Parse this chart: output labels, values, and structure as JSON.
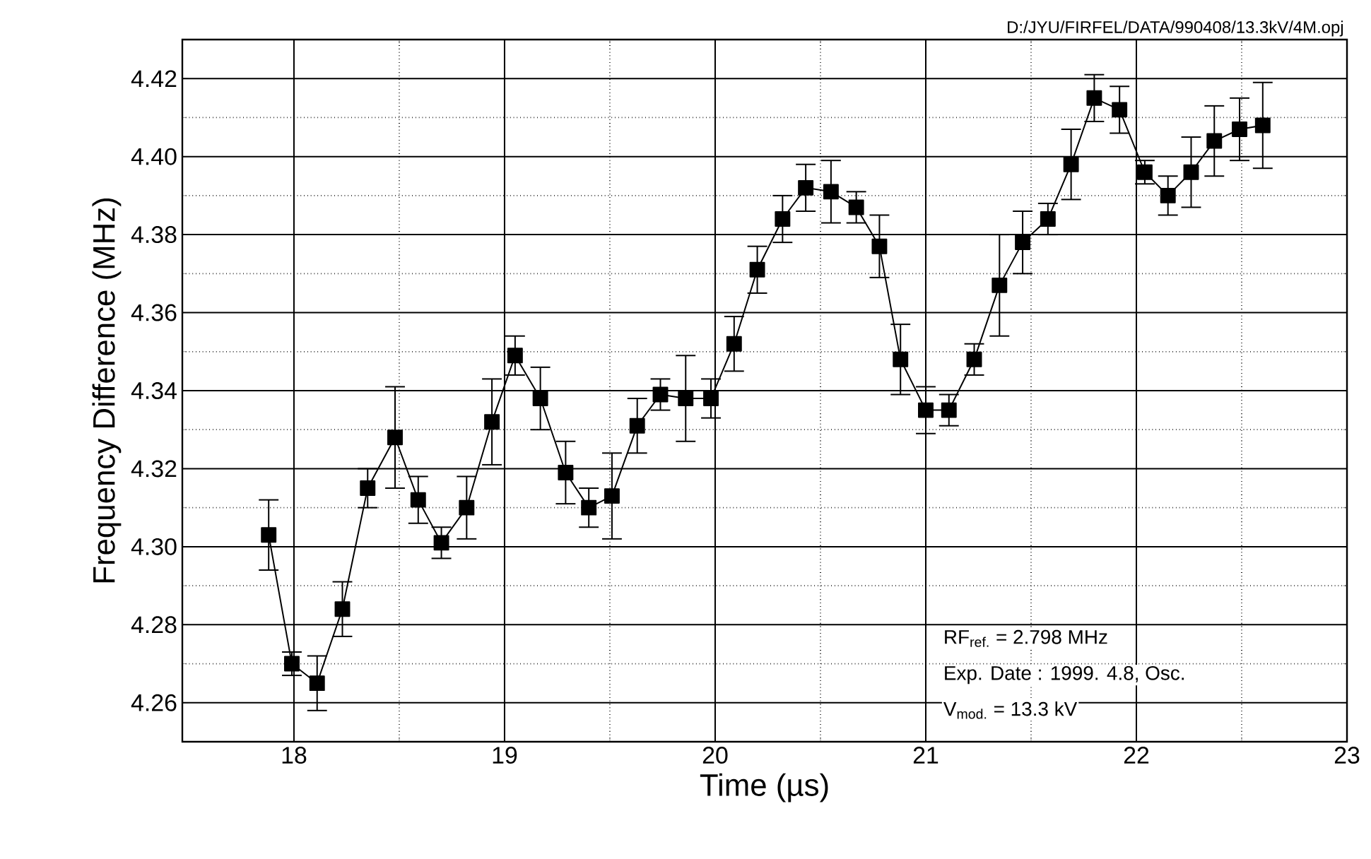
{
  "chart_data": {
    "type": "line",
    "xlabel": "Time (µs)",
    "ylabel": "Frequency Difference (MHz)",
    "annotations": [
      "D:/JYU/FIRFEL/DATA/990408/13.3kV/4M.opj",
      "RF$_{ref.}$ = 2.798 MHz",
      "Exp. Date : 1999. 4.8, Osc.",
      "V$_{mod.}$ = 13.3 kV"
    ],
    "xlim": [
      17.47,
      23
    ],
    "ylim": [
      4.25,
      4.43
    ],
    "xticks": [
      18,
      19,
      20,
      21,
      22,
      23
    ],
    "yticks": [
      {
        "value": 4.26,
        "label": "4.26"
      },
      {
        "value": 4.28,
        "label": "4.28"
      },
      {
        "value": 4.3,
        "label": "4.30"
      },
      {
        "value": 4.32,
        "label": "4.32"
      },
      {
        "value": 4.34,
        "label": "4.34"
      },
      {
        "value": 4.36,
        "label": "4.36"
      },
      {
        "value": 4.38,
        "label": "4.38"
      },
      {
        "value": 4.4,
        "label": "4.40"
      },
      {
        "value": 4.42,
        "label": "4.42"
      }
    ],
    "grid": true,
    "marker": "square",
    "line_style": "solid",
    "series": [
      {
        "color": "#000000",
        "x": [
          17.88,
          17.99,
          18.11,
          18.23,
          18.35,
          18.48,
          18.59,
          18.7,
          18.82,
          18.94,
          19.05,
          19.17,
          19.29,
          19.4,
          19.51,
          19.63,
          19.74,
          19.86,
          19.98,
          20.09,
          20.2,
          20.32,
          20.43,
          20.55,
          20.67,
          20.78,
          20.88,
          21.0,
          21.11,
          21.23,
          21.35,
          21.46,
          21.58,
          21.69,
          21.8,
          21.92,
          22.04,
          22.15,
          22.26,
          22.37,
          22.49,
          22.6
        ],
        "values": [
          4.303,
          4.27,
          4.265,
          4.284,
          4.315,
          4.328,
          4.312,
          4.301,
          4.31,
          4.332,
          4.349,
          4.338,
          4.319,
          4.31,
          4.313,
          4.331,
          4.339,
          4.338,
          4.338,
          4.352,
          4.371,
          4.384,
          4.392,
          4.391,
          4.387,
          4.377,
          4.348,
          4.335,
          4.335,
          4.348,
          4.367,
          4.378,
          4.384,
          4.398,
          4.415,
          4.412,
          4.396,
          4.39,
          4.396,
          4.404,
          4.407,
          4.408
        ],
        "errors": [
          0.009,
          0.003,
          0.007,
          0.007,
          0.005,
          0.013,
          0.006,
          0.004,
          0.008,
          0.011,
          0.005,
          0.008,
          0.008,
          0.005,
          0.011,
          0.007,
          0.004,
          0.011,
          0.005,
          0.007,
          0.006,
          0.006,
          0.006,
          0.008,
          0.004,
          0.008,
          0.009,
          0.006,
          0.004,
          0.004,
          0.013,
          0.008,
          0.004,
          0.009,
          0.006,
          0.006,
          0.003,
          0.005,
          0.009,
          0.009,
          0.008,
          0.011
        ]
      }
    ]
  }
}
